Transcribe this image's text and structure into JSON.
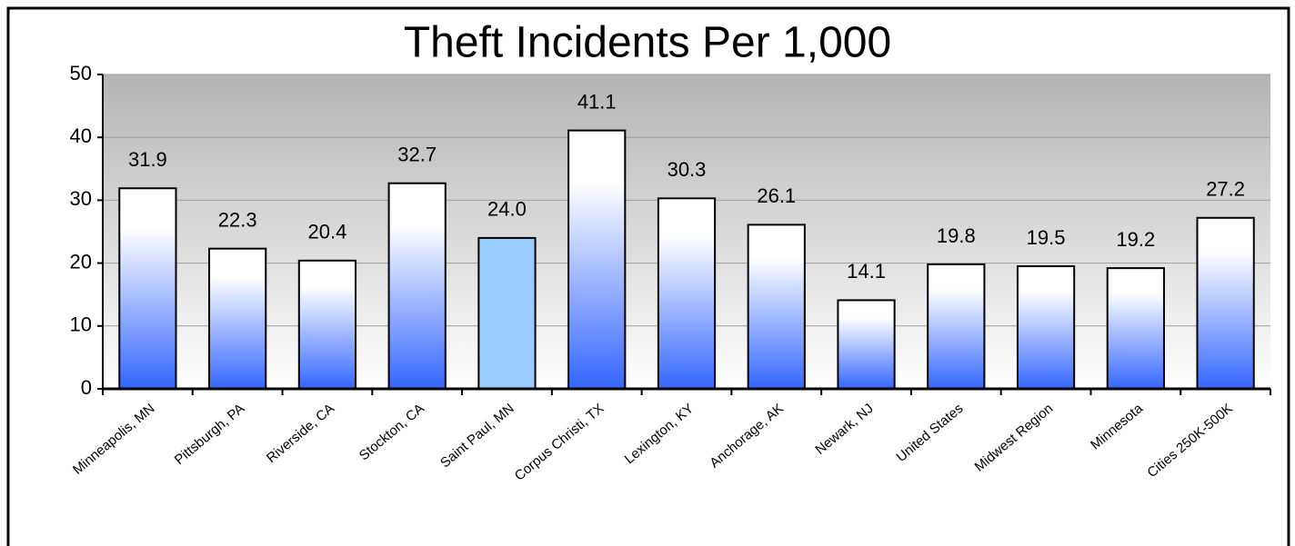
{
  "chart_data": {
    "type": "bar",
    "title": "Theft Incidents Per 1,000",
    "categories": [
      "Minneapolis, MN",
      "Pittsburgh, PA",
      "Riverside, CA",
      "Stockton, CA",
      "Saint Paul, MN",
      "Corpus Christi, TX",
      "Lexington, KY",
      "Anchorage, AK",
      "Newark, NJ",
      "United States",
      "Midwest Region",
      "Minnesota",
      "Cities 250K-500K"
    ],
    "values": [
      31.9,
      22.3,
      20.4,
      32.7,
      24,
      41.1,
      30.3,
      26.1,
      14.1,
      19.8,
      19.5,
      19.2,
      27.2
    ],
    "value_labels": [
      "31.9",
      "22.3",
      "20.4",
      "32.7",
      "24.0",
      "41.1",
      "30.3",
      "26.1",
      "14.1",
      "19.8",
      "19.5",
      "19.2",
      "27.2"
    ],
    "color": "#3366ff",
    "colors": [
      "#3366ff",
      "#3366ff",
      "#3366ff",
      "#3366ff",
      "#99ccff",
      "#3366ff",
      "#3366ff",
      "#3366ff",
      "#3366ff",
      "#3366ff",
      "#3366ff",
      "#3366ff",
      "#3366ff"
    ],
    "ylim": [
      0,
      50
    ],
    "yticks": [
      0,
      10,
      20,
      30,
      40,
      50
    ],
    "grid": true
  }
}
